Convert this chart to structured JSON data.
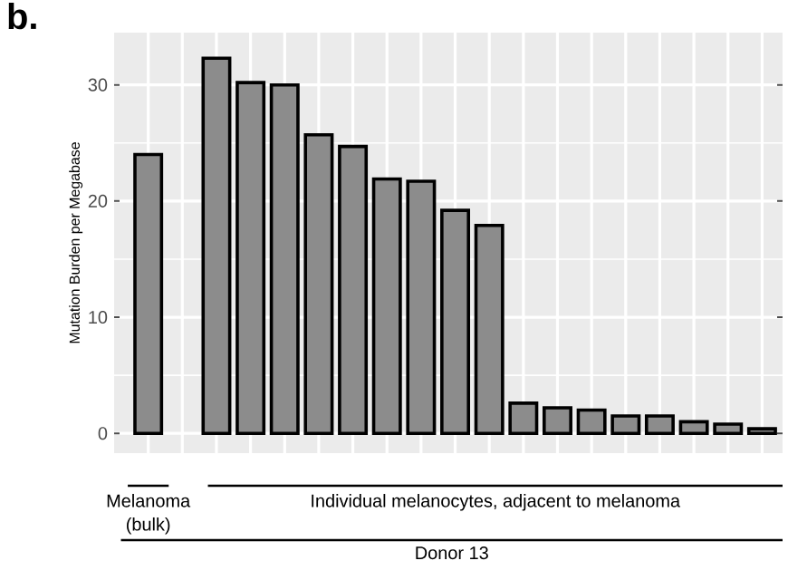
{
  "chart_data": {
    "type": "bar",
    "title": "b.",
    "ylabel": "Mutation Burden per Megabase",
    "categories": [
      null,
      null,
      null,
      null,
      null,
      null,
      null,
      null,
      null,
      null,
      null,
      null,
      null,
      null,
      null,
      null,
      null,
      null,
      null
    ],
    "values": [
      24.0,
      null,
      32.3,
      30.2,
      30.0,
      25.7,
      24.7,
      21.9,
      21.7,
      19.2,
      17.9,
      2.6,
      2.2,
      2.0,
      1.5,
      1.5,
      1.0,
      0.8,
      0.4
    ],
    "color": "#8c8c8c",
    "ylim": [
      -1.7,
      34.5
    ],
    "yticks": [
      0,
      10,
      20,
      30
    ],
    "grid": true,
    "tick_labels": "y",
    "annotations": [
      "Melanoma (bulk)",
      "Individual melanocytes, adjacent to melanoma",
      "Donor 13"
    ]
  }
}
